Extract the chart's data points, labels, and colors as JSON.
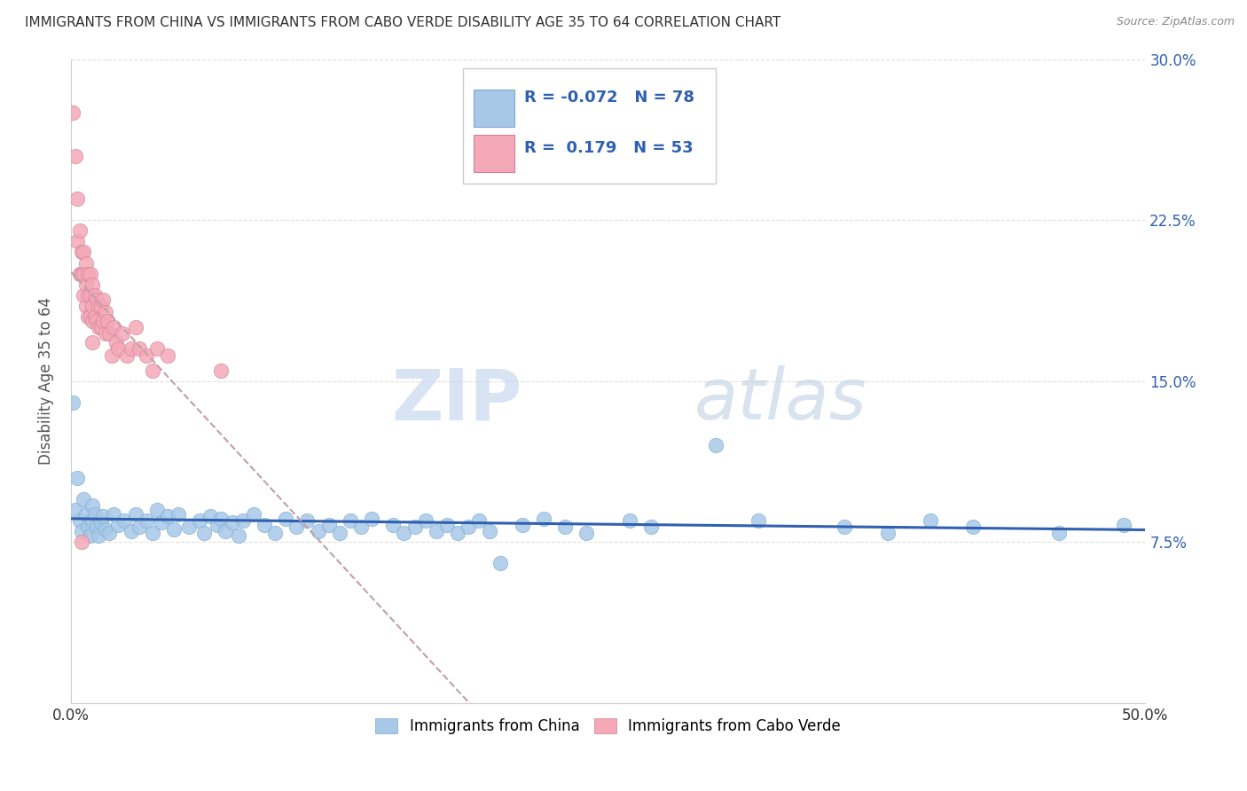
{
  "title": "IMMIGRANTS FROM CHINA VS IMMIGRANTS FROM CABO VERDE DISABILITY AGE 35 TO 64 CORRELATION CHART",
  "source": "Source: ZipAtlas.com",
  "ylabel": "Disability Age 35 to 64",
  "legend_label_1": "Immigrants from China",
  "legend_label_2": "Immigrants from Cabo Verde",
  "R1": -0.072,
  "N1": 78,
  "R2": 0.179,
  "N2": 53,
  "color_china": "#a8c8e8",
  "color_cabo": "#f4a8b8",
  "color_china_line": "#3060b0",
  "color_cabo_line": "#d06070",
  "xmin": 0.0,
  "xmax": 0.5,
  "ymin": 0.0,
  "ymax": 0.3,
  "yticks": [
    0.075,
    0.15,
    0.225,
    0.3
  ],
  "ytick_labels": [
    "7.5%",
    "15.0%",
    "22.5%",
    "30.0%"
  ],
  "xtick_labels_show": [
    "0.0%",
    "50.0%"
  ],
  "xticks_show": [
    0.0,
    0.5
  ],
  "china_x": [
    0.001,
    0.002,
    0.003,
    0.004,
    0.005,
    0.006,
    0.007,
    0.008,
    0.009,
    0.01,
    0.01,
    0.011,
    0.012,
    0.013,
    0.014,
    0.015,
    0.016,
    0.018,
    0.02,
    0.022,
    0.025,
    0.028,
    0.03,
    0.032,
    0.035,
    0.038,
    0.04,
    0.042,
    0.045,
    0.048,
    0.05,
    0.055,
    0.06,
    0.062,
    0.065,
    0.068,
    0.07,
    0.072,
    0.075,
    0.078,
    0.08,
    0.085,
    0.09,
    0.095,
    0.1,
    0.105,
    0.11,
    0.115,
    0.12,
    0.125,
    0.13,
    0.135,
    0.14,
    0.15,
    0.155,
    0.16,
    0.165,
    0.17,
    0.175,
    0.18,
    0.185,
    0.19,
    0.195,
    0.2,
    0.21,
    0.22,
    0.23,
    0.24,
    0.26,
    0.27,
    0.3,
    0.32,
    0.36,
    0.38,
    0.4,
    0.42,
    0.46,
    0.49
  ],
  "china_y": [
    0.14,
    0.09,
    0.105,
    0.085,
    0.08,
    0.095,
    0.088,
    0.082,
    0.078,
    0.092,
    0.085,
    0.088,
    0.082,
    0.078,
    0.084,
    0.087,
    0.081,
    0.079,
    0.088,
    0.083,
    0.085,
    0.08,
    0.088,
    0.082,
    0.085,
    0.079,
    0.09,
    0.084,
    0.087,
    0.081,
    0.088,
    0.082,
    0.085,
    0.079,
    0.087,
    0.083,
    0.086,
    0.08,
    0.084,
    0.078,
    0.085,
    0.088,
    0.083,
    0.079,
    0.086,
    0.082,
    0.085,
    0.08,
    0.083,
    0.079,
    0.085,
    0.082,
    0.086,
    0.083,
    0.079,
    0.082,
    0.085,
    0.08,
    0.083,
    0.079,
    0.082,
    0.085,
    0.08,
    0.065,
    0.083,
    0.086,
    0.082,
    0.079,
    0.085,
    0.082,
    0.12,
    0.085,
    0.082,
    0.079,
    0.085,
    0.082,
    0.079,
    0.083
  ],
  "cabo_x": [
    0.001,
    0.002,
    0.003,
    0.003,
    0.004,
    0.004,
    0.005,
    0.005,
    0.005,
    0.006,
    0.006,
    0.006,
    0.007,
    0.007,
    0.007,
    0.008,
    0.008,
    0.008,
    0.009,
    0.009,
    0.009,
    0.01,
    0.01,
    0.01,
    0.01,
    0.011,
    0.011,
    0.012,
    0.012,
    0.013,
    0.013,
    0.014,
    0.014,
    0.015,
    0.015,
    0.016,
    0.016,
    0.017,
    0.018,
    0.019,
    0.02,
    0.021,
    0.022,
    0.024,
    0.026,
    0.028,
    0.03,
    0.032,
    0.035,
    0.038,
    0.04,
    0.045,
    0.07
  ],
  "cabo_y": [
    0.275,
    0.255,
    0.235,
    0.215,
    0.2,
    0.22,
    0.21,
    0.2,
    0.075,
    0.21,
    0.2,
    0.19,
    0.205,
    0.195,
    0.185,
    0.2,
    0.19,
    0.18,
    0.2,
    0.19,
    0.18,
    0.195,
    0.185,
    0.178,
    0.168,
    0.19,
    0.18,
    0.188,
    0.178,
    0.185,
    0.175,
    0.185,
    0.175,
    0.188,
    0.178,
    0.182,
    0.172,
    0.178,
    0.172,
    0.162,
    0.175,
    0.168,
    0.165,
    0.172,
    0.162,
    0.165,
    0.175,
    0.165,
    0.162,
    0.155,
    0.165,
    0.162,
    0.155
  ],
  "watermark_zip": "ZIP",
  "watermark_atlas": "atlas",
  "background_color": "#ffffff",
  "grid_color": "#e0e0e0"
}
